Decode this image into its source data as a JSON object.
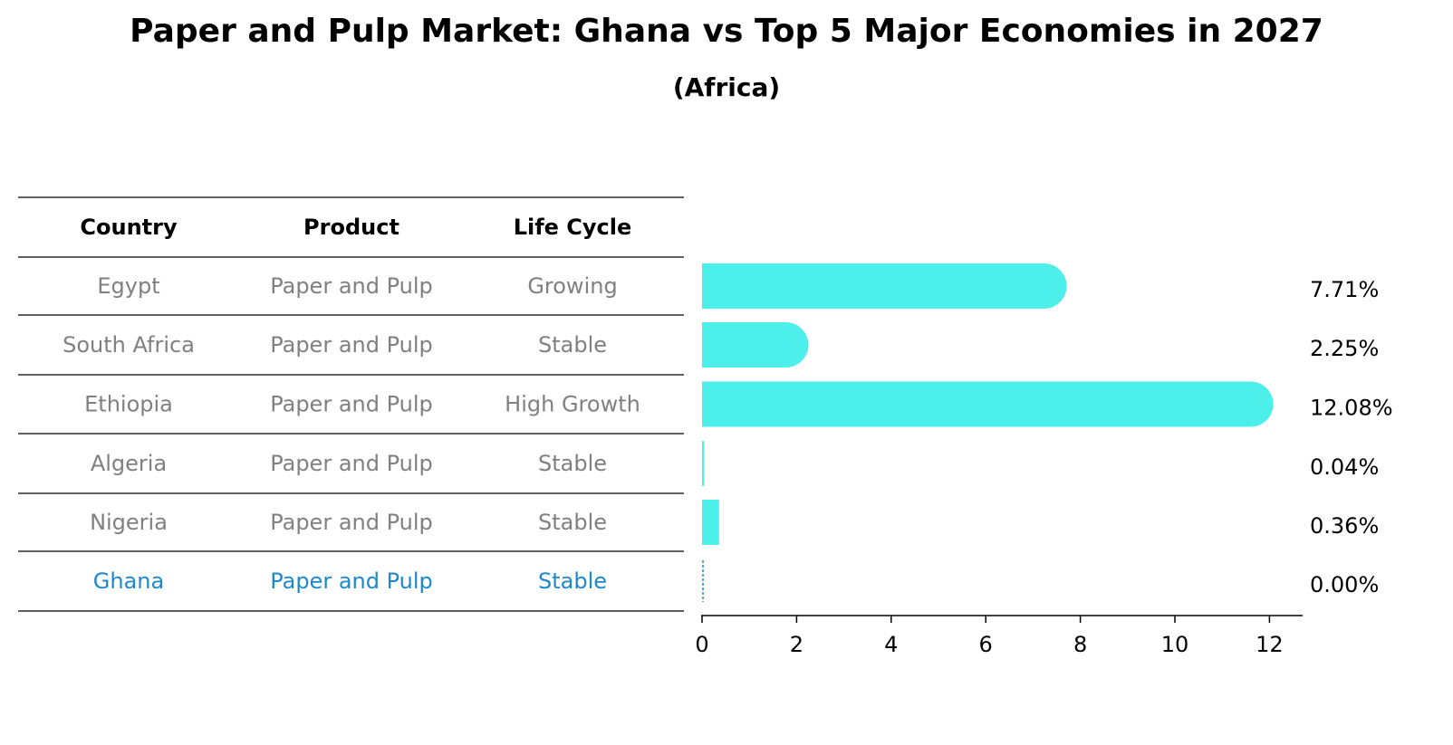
{
  "title": "Paper and Pulp Market: Ghana vs Top 5 Major Economies in 2027",
  "subtitle": "(Africa)",
  "table": {
    "headers": [
      "Country",
      "Product",
      "Life Cycle"
    ],
    "rows": [
      {
        "country": "Egypt",
        "product": "Paper and Pulp",
        "life_cycle": "Growing"
      },
      {
        "country": "South Africa",
        "product": "Paper and Pulp",
        "life_cycle": "Stable"
      },
      {
        "country": "Ethiopia",
        "product": "Paper and Pulp",
        "life_cycle": "High Growth"
      },
      {
        "country": "Algeria",
        "product": "Paper and Pulp",
        "life_cycle": "Stable"
      },
      {
        "country": "Nigeria",
        "product": "Paper and Pulp",
        "life_cycle": "Stable"
      },
      {
        "country": "Ghana",
        "product": "Paper and Pulp",
        "life_cycle": "Stable"
      }
    ],
    "highlight_country": "Ghana"
  },
  "colors": {
    "bar": "#4DEFEA",
    "highlight_text": "#1E88CC",
    "muted_text": "#808080",
    "rule": "#000000"
  },
  "chart_data": {
    "type": "bar",
    "orientation": "horizontal",
    "categories": [
      "Egypt",
      "South Africa",
      "Ethiopia",
      "Algeria",
      "Nigeria",
      "Ghana"
    ],
    "values": [
      7.71,
      2.25,
      12.08,
      0.04,
      0.36,
      0.0
    ],
    "value_labels": [
      "7.71%",
      "2.25%",
      "12.08%",
      "0.04%",
      "0.36%",
      "0.00%"
    ],
    "xlim": [
      0,
      12.7
    ],
    "xticks": [
      0,
      2,
      4,
      6,
      8,
      10,
      12
    ],
    "grid": false
  }
}
